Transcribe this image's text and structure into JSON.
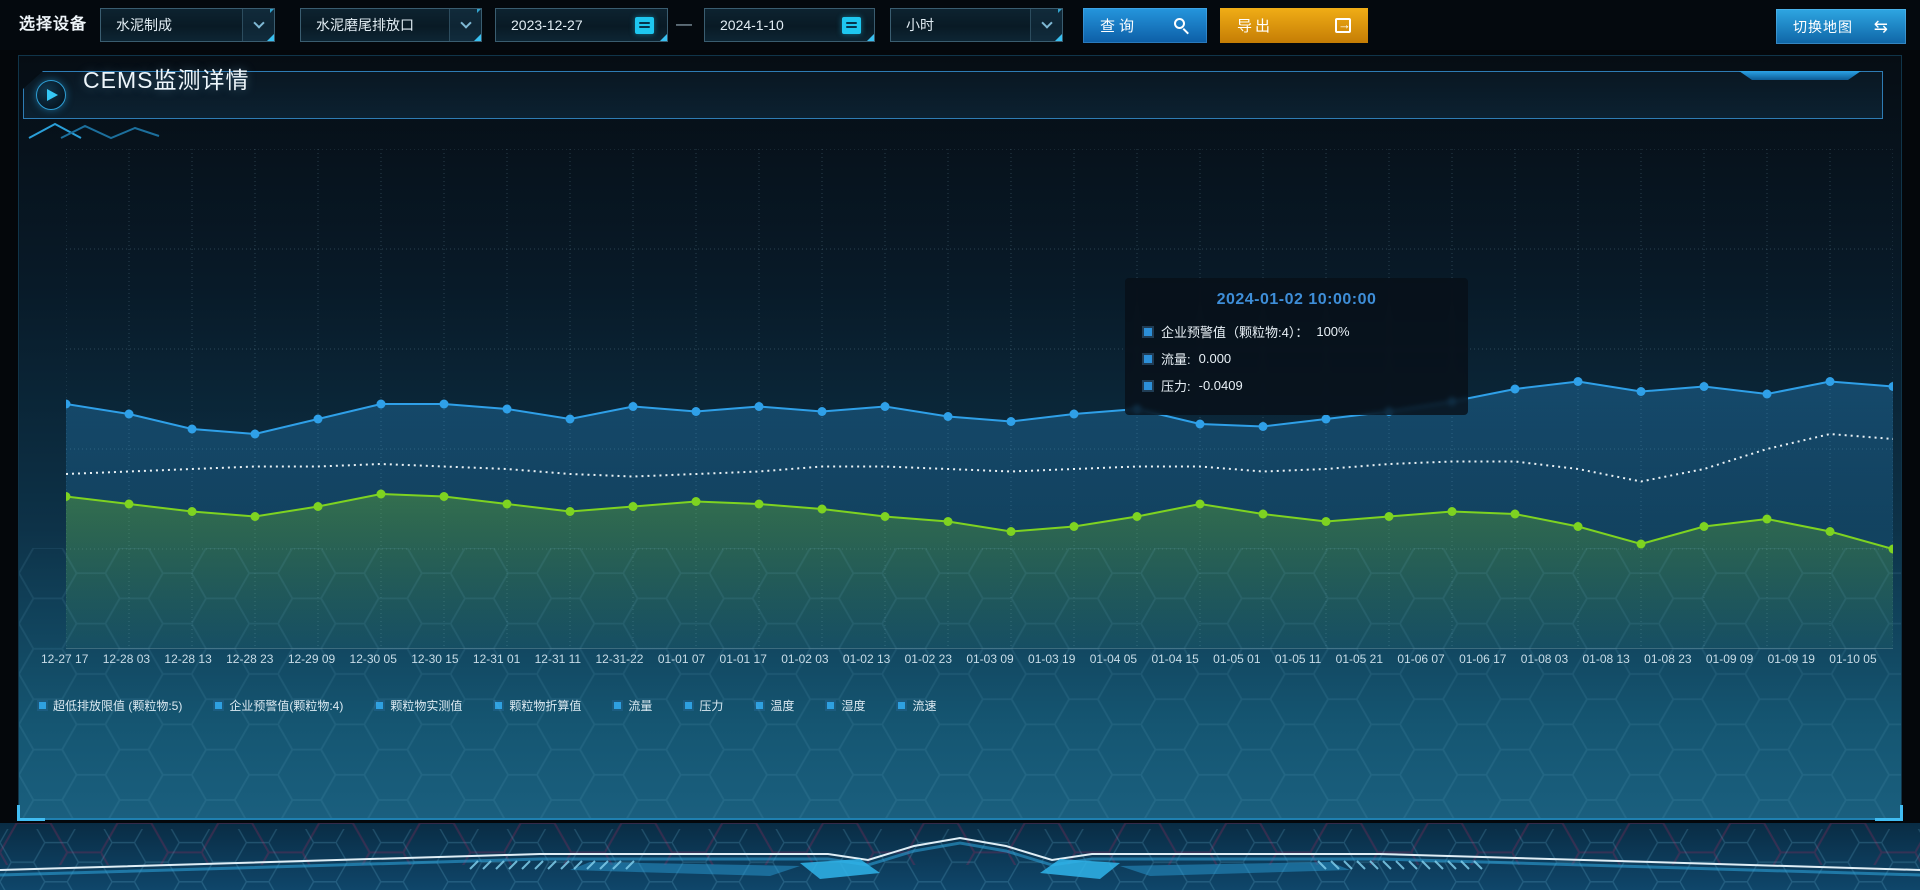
{
  "toolbar": {
    "device_label": "选择设备",
    "process_select": {
      "value": "水泥制成",
      "icon": "chevron-down-icon"
    },
    "outlet_select": {
      "value": "水泥磨尾排放口",
      "icon": "chevron-down-icon"
    },
    "start_date": {
      "value": "2023-12-27",
      "icon": "calendar-icon"
    },
    "range_separator": "—",
    "end_date": {
      "value": "2024-1-10",
      "icon": "calendar-icon"
    },
    "interval_select": {
      "value": "小时",
      "icon": "chevron-down-icon"
    },
    "query_button": {
      "label": "查询",
      "icon": "search-icon"
    },
    "export_button": {
      "label": "导出",
      "icon": "export-icon"
    },
    "switch_map_button": {
      "label": "切换地图",
      "icon": "swap-arrows-icon",
      "glyph": "⇆"
    }
  },
  "panel": {
    "title": "CEMS监测详情",
    "title_icon": "play-icon"
  },
  "tooltip": {
    "title": "2024-01-02 10:00:00",
    "marker_color": "#2c8fd8",
    "rows": [
      {
        "label": "企业预警值（颗粒物:4）：",
        "value": "100%"
      },
      {
        "label": "流量:",
        "value": "0.000"
      },
      {
        "label": "压力:",
        "value": "-0.0409"
      }
    ]
  },
  "legend": {
    "marker_color": "#2ea0e0",
    "items": [
      "超低排放限值 (颗粒物:5)",
      "企业预警值(颗粒物:4)",
      "颗粒物实测值",
      "颗粒物折算值",
      "流量",
      "压力",
      "温度",
      "湿度",
      "流速"
    ]
  },
  "chart_data": {
    "type": "line",
    "title": "",
    "xlabel": "",
    "ylabel": "",
    "ylim": [
      0,
      100
    ],
    "y_axis_visible": false,
    "grid": "dashed",
    "legend_position": "bottom",
    "note": "No y-axis labels are rendered in the UI; values are estimated from pixel positions on a 0-100 scale of the plot height.",
    "x_labels": [
      "12-27 17",
      "12-28 03",
      "12-28 13",
      "12-28 23",
      "12-29 09",
      "12-30 05",
      "12-30 15",
      "12-31 01",
      "12-31 11",
      "12-31-22",
      "01-01 07",
      "01-01 17",
      "01-02 03",
      "01-02 13",
      "01-02 23",
      "01-03 09",
      "01-03 19",
      "01-04 05",
      "01-04 15",
      "01-05 01",
      "01-05 11",
      "01-05 21",
      "01-06 07",
      "01-06 17",
      "01-08 03",
      "01-08 13",
      "01-08 23",
      "01-09 09",
      "01-09 19",
      "01-10 05"
    ],
    "series": [
      {
        "name": "流量",
        "color": "#2fa0e8",
        "style": "line-markers-area",
        "values": [
          49,
          47,
          44,
          43,
          46,
          49,
          49,
          48,
          46,
          48.5,
          47.5,
          48.5,
          47.5,
          48.5,
          46.5,
          45.5,
          47,
          48,
          45,
          44.5,
          46,
          47.5,
          49.5,
          52,
          53.5,
          51.5,
          52.5,
          51,
          53.5,
          52.5
        ]
      },
      {
        "name": "企业预警值(颗粒物:4)",
        "color": "#e9f1f5",
        "style": "dotted",
        "values": [
          35,
          35.5,
          36,
          36.5,
          36.5,
          37,
          36.5,
          36,
          35,
          34.5,
          35,
          35.5,
          36.5,
          36.5,
          36,
          35.5,
          36,
          36.5,
          36.5,
          35.5,
          36,
          37,
          37.5,
          37.5,
          36,
          33.5,
          36,
          40,
          43,
          42
        ]
      },
      {
        "name": "压力",
        "color": "#7ed321",
        "style": "line-markers-area",
        "values": [
          30.5,
          29,
          27.5,
          26.5,
          28.5,
          31,
          30.5,
          29,
          27.5,
          28.5,
          29.5,
          29,
          28,
          26.5,
          25.5,
          23.5,
          24.5,
          26.5,
          29,
          27,
          25.5,
          26.5,
          27.5,
          27,
          24.5,
          21,
          24.5,
          26,
          23.5,
          20
        ]
      }
    ]
  }
}
